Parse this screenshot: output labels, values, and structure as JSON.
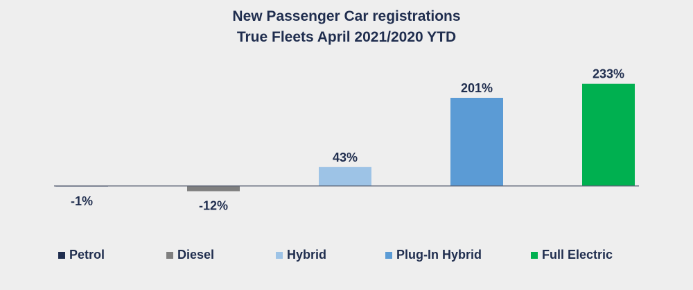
{
  "chart_data": {
    "type": "bar",
    "title": "New Passenger Car registrations",
    "subtitle": "True Fleets April 2021/2020 YTD",
    "categories": [
      "Petrol",
      "Diesel",
      "Hybrid",
      "Plug-In Hybrid",
      "Full Electric"
    ],
    "values": [
      -1,
      -12,
      43,
      201,
      233
    ],
    "data_labels": [
      "-1%",
      "-12%",
      "43%",
      "201%",
      "233%"
    ],
    "colors": [
      "#1f2d4e",
      "#7f7f7f",
      "#9dc3e6",
      "#5b9bd5",
      "#00b050"
    ],
    "ylim": [
      -30,
      250
    ],
    "xlabel": "",
    "ylabel": "",
    "grid": false,
    "legend": "bottom"
  }
}
